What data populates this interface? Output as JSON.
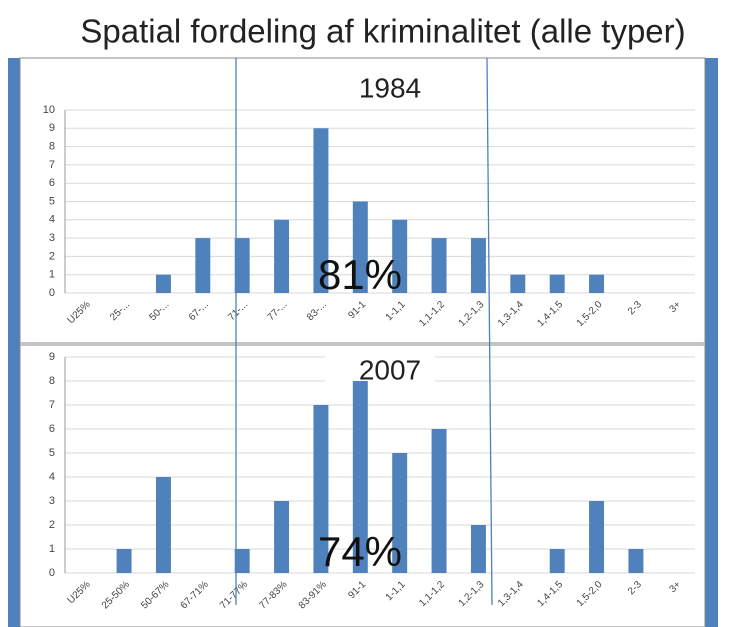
{
  "title": "Spatial fordeling af kriminalitet (alle typer)",
  "chart_data": [
    {
      "type": "bar",
      "title": "1984",
      "annotation": "81%",
      "color": "#4f81bd",
      "categories": [
        "U25%",
        "25-...",
        "50-...",
        "67-...",
        "71-...",
        "77-...",
        "83-...",
        "91-1",
        "1-1,1",
        "1,1-1,2",
        "1,2-1,3",
        "1,3-1,4",
        "1,4-1,5",
        "1,5-2,0",
        "2-3",
        "3+"
      ],
      "values": [
        0,
        0,
        1,
        3,
        3,
        4,
        9,
        5,
        4,
        3,
        3,
        1,
        1,
        1,
        0,
        0
      ],
      "ylim": [
        0,
        10
      ],
      "yticks": [
        0,
        1,
        2,
        3,
        4,
        5,
        6,
        7,
        8,
        9,
        10
      ],
      "grid": true
    },
    {
      "type": "bar",
      "title": "2007",
      "annotation": "74%",
      "color": "#4f81bd",
      "categories": [
        "U25%",
        "25-50%",
        "50-67%",
        "67-71%",
        "71-77%",
        "77-83%",
        "83-91%",
        "91-1",
        "1-1,1",
        "1,1-1,2",
        "1,2-1,3",
        "1,3-1,4",
        "1,4-1,5",
        "1,5-2,0",
        "2-3",
        "3+"
      ],
      "values": [
        0,
        1,
        4,
        0,
        1,
        3,
        7,
        8,
        5,
        6,
        2,
        0,
        1,
        3,
        1,
        0
      ],
      "ylim": [
        0,
        9
      ],
      "yticks": [
        0,
        1,
        2,
        3,
        4,
        5,
        6,
        7,
        8,
        9
      ],
      "grid": true
    }
  ]
}
